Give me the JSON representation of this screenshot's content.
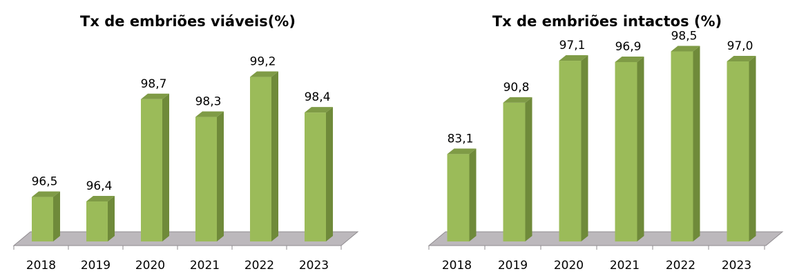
{
  "chart_data": [
    {
      "type": "bar",
      "title": "Tx de embriões viáveis(%)",
      "categories": [
        "2018",
        "2019",
        "2020",
        "2021",
        "2022",
        "2023"
      ],
      "values": [
        96.5,
        96.4,
        98.7,
        98.3,
        99.2,
        98.4
      ],
      "value_labels": [
        "96,5",
        "96,4",
        "98,7",
        "98,3",
        "99,2",
        "98,4"
      ],
      "ylim": [
        95.5,
        100
      ],
      "grid": false,
      "legend": "none",
      "colors": {
        "bar_front": "#9bbb59",
        "bar_side": "#6f8a3a",
        "bar_top": "#7f9b46",
        "floor": "#bcb8bc"
      }
    },
    {
      "type": "bar",
      "title": "Tx de embriões intactos (%)",
      "categories": [
        "2018",
        "2019",
        "2020",
        "2021",
        "2022",
        "2023"
      ],
      "values": [
        83.1,
        90.8,
        97.1,
        96.9,
        98.5,
        97.0
      ],
      "value_labels": [
        "83,1",
        "90,8",
        "97,1",
        "96,9",
        "98,5",
        "97,0"
      ],
      "ylim": [
        70,
        100
      ],
      "grid": false,
      "legend": "none",
      "colors": {
        "bar_front": "#9bbb59",
        "bar_side": "#6f8a3a",
        "bar_top": "#7f9b46",
        "floor": "#bcb8bc"
      }
    }
  ]
}
